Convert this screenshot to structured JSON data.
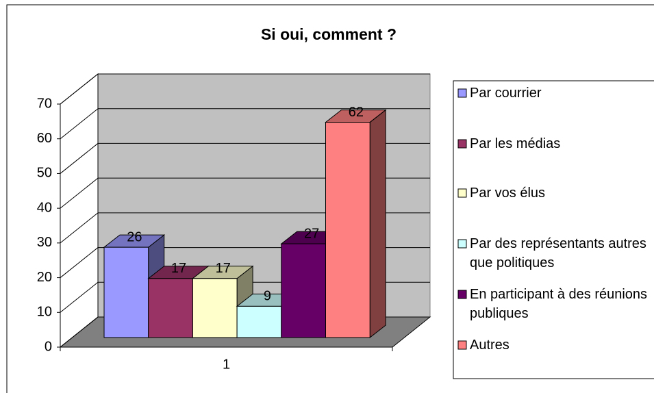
{
  "chart_data": {
    "type": "bar3d",
    "title": "Si oui, comment ?",
    "categories": [
      "1"
    ],
    "series": [
      {
        "name": "Par courrier",
        "color": "#9999FF",
        "values": [
          26
        ]
      },
      {
        "name": "Par les médias",
        "color": "#993366",
        "values": [
          17
        ]
      },
      {
        "name": "Par vos élus",
        "color": "#FFFFCC",
        "values": [
          17
        ]
      },
      {
        "name": "Par des représentants autres que politiques",
        "color": "#CCFFFF",
        "values": [
          9
        ]
      },
      {
        "name": "En participant à des réunions publiques",
        "color": "#660066",
        "values": [
          27
        ]
      },
      {
        "name": "Autres",
        "color": "#FF8080",
        "values": [
          62
        ]
      }
    ],
    "ylim": [
      0,
      70
    ],
    "yticks": [
      0,
      10,
      20,
      30,
      40,
      50,
      60,
      70
    ],
    "grid": true,
    "legend": "right"
  }
}
